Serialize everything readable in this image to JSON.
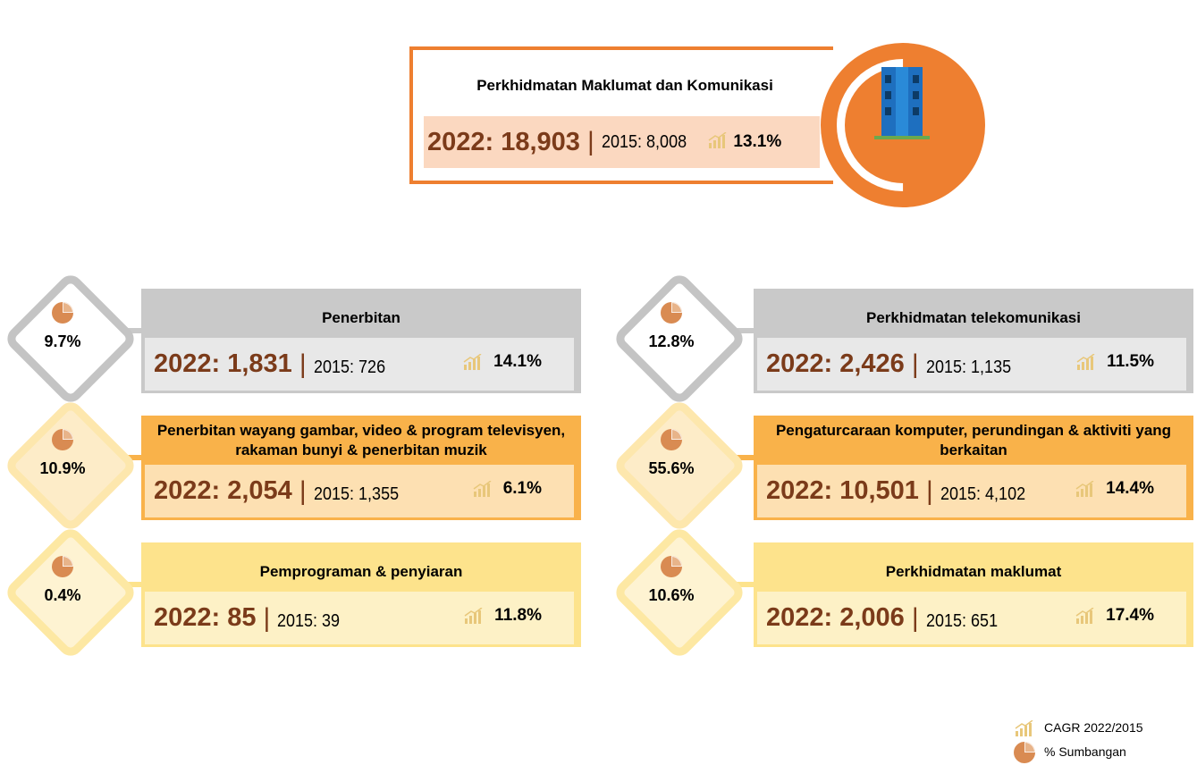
{
  "header": {
    "title": "Perkhidmatan Maklumat dan Komunikasi",
    "y2022": "2022: 18,903",
    "y2015": "2015: 8,008",
    "cagr": "13.1%"
  },
  "cards": [
    {
      "title": "Penerbitan",
      "share": "9.7%",
      "y2022": "2022: 1,831",
      "y2015": "2015: 726",
      "cagr": "14.1%"
    },
    {
      "title": "Perkhidmatan telekomunikasi",
      "share": "12.8%",
      "y2022": "2022: 2,426",
      "y2015": "2015: 1,135",
      "cagr": "11.5%"
    },
    {
      "title": "Penerbitan wayang gambar, video & program televisyen, rakaman bunyi & penerbitan muzik",
      "share": "10.9%",
      "y2022": "2022: 2,054",
      "y2015": "2015: 1,355",
      "cagr": "6.1%"
    },
    {
      "title": "Pengaturcaraan komputer, perundingan & aktiviti yang berkaitan",
      "share": "55.6%",
      "y2022": "2022: 10,501",
      "y2015": "2015: 4,102",
      "cagr": "14.4%"
    },
    {
      "title": "Pemprograman & penyiaran",
      "share": "0.4%",
      "y2022": "2022: 85",
      "y2015": "2015: 39",
      "cagr": "11.8%"
    },
    {
      "title": "Perkhidmatan maklumat",
      "share": "10.6%",
      "y2022": "2022: 2,006",
      "y2015": "2015: 651",
      "cagr": "17.4%"
    }
  ],
  "legend": {
    "cagr": "CAGR 2022/2015",
    "share": "% Sumbangan"
  }
}
